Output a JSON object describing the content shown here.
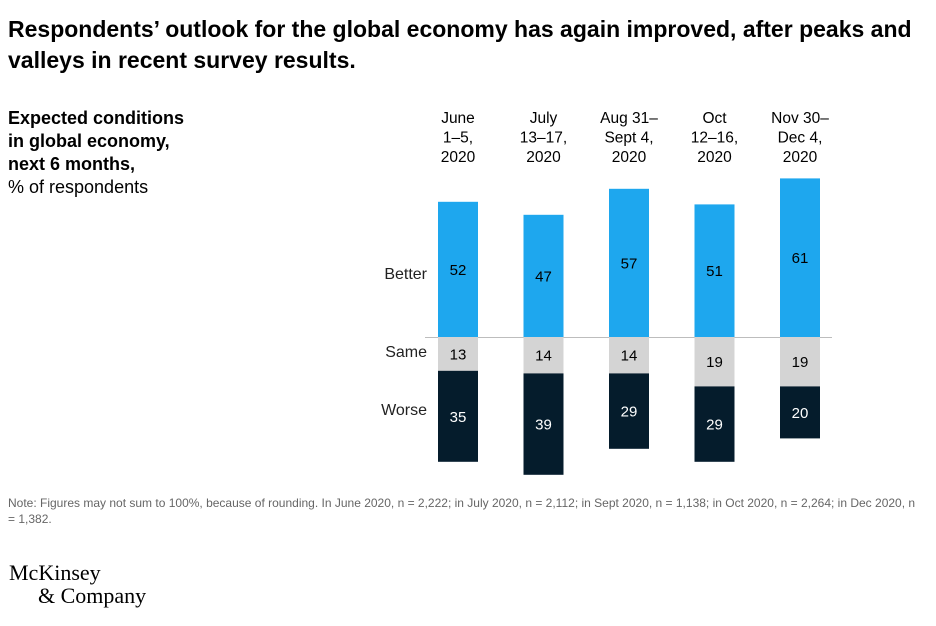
{
  "title": "Respondents’ outlook for the global economy has again improved, after peaks and valleys in recent survey results.",
  "subtitle": {
    "bold_lines": [
      "Expected conditions",
      "in global economy,",
      "next 6 months,"
    ],
    "unit": "% of respondents"
  },
  "chart_data": {
    "type": "bar",
    "stacked": true,
    "categories": [
      [
        "June",
        "1–5,",
        "2020"
      ],
      [
        "July",
        "13–17,",
        "2020"
      ],
      [
        "Aug 31–",
        "Sept 4,",
        "2020"
      ],
      [
        "Oct",
        "12–16,",
        "2020"
      ],
      [
        "Nov 30–",
        "Dec 4,",
        "2020"
      ]
    ],
    "series": [
      {
        "name": "Better",
        "values": [
          52,
          47,
          57,
          51,
          61
        ],
        "color": "#1ea7ee",
        "text_color": "#000000"
      },
      {
        "name": "Same",
        "values": [
          13,
          14,
          14,
          19,
          19
        ],
        "color": "#d4d4d4",
        "text_color": "#000000"
      },
      {
        "name": "Worse",
        "values": [
          35,
          39,
          29,
          29,
          20
        ],
        "color": "#051c2c",
        "text_color": "#ffffff"
      }
    ],
    "baseline_line": true
  },
  "note": "Note: Figures may not sum to 100%, because of rounding. In June 2020, n = 2,222; in July 2020, n = 2,112; in Sept 2020, n = 1,138; in Oct 2020, n = 2,264; in Dec 2020, n = 1,382.",
  "logo": {
    "line1": "McKinsey",
    "line2": "& Company"
  }
}
